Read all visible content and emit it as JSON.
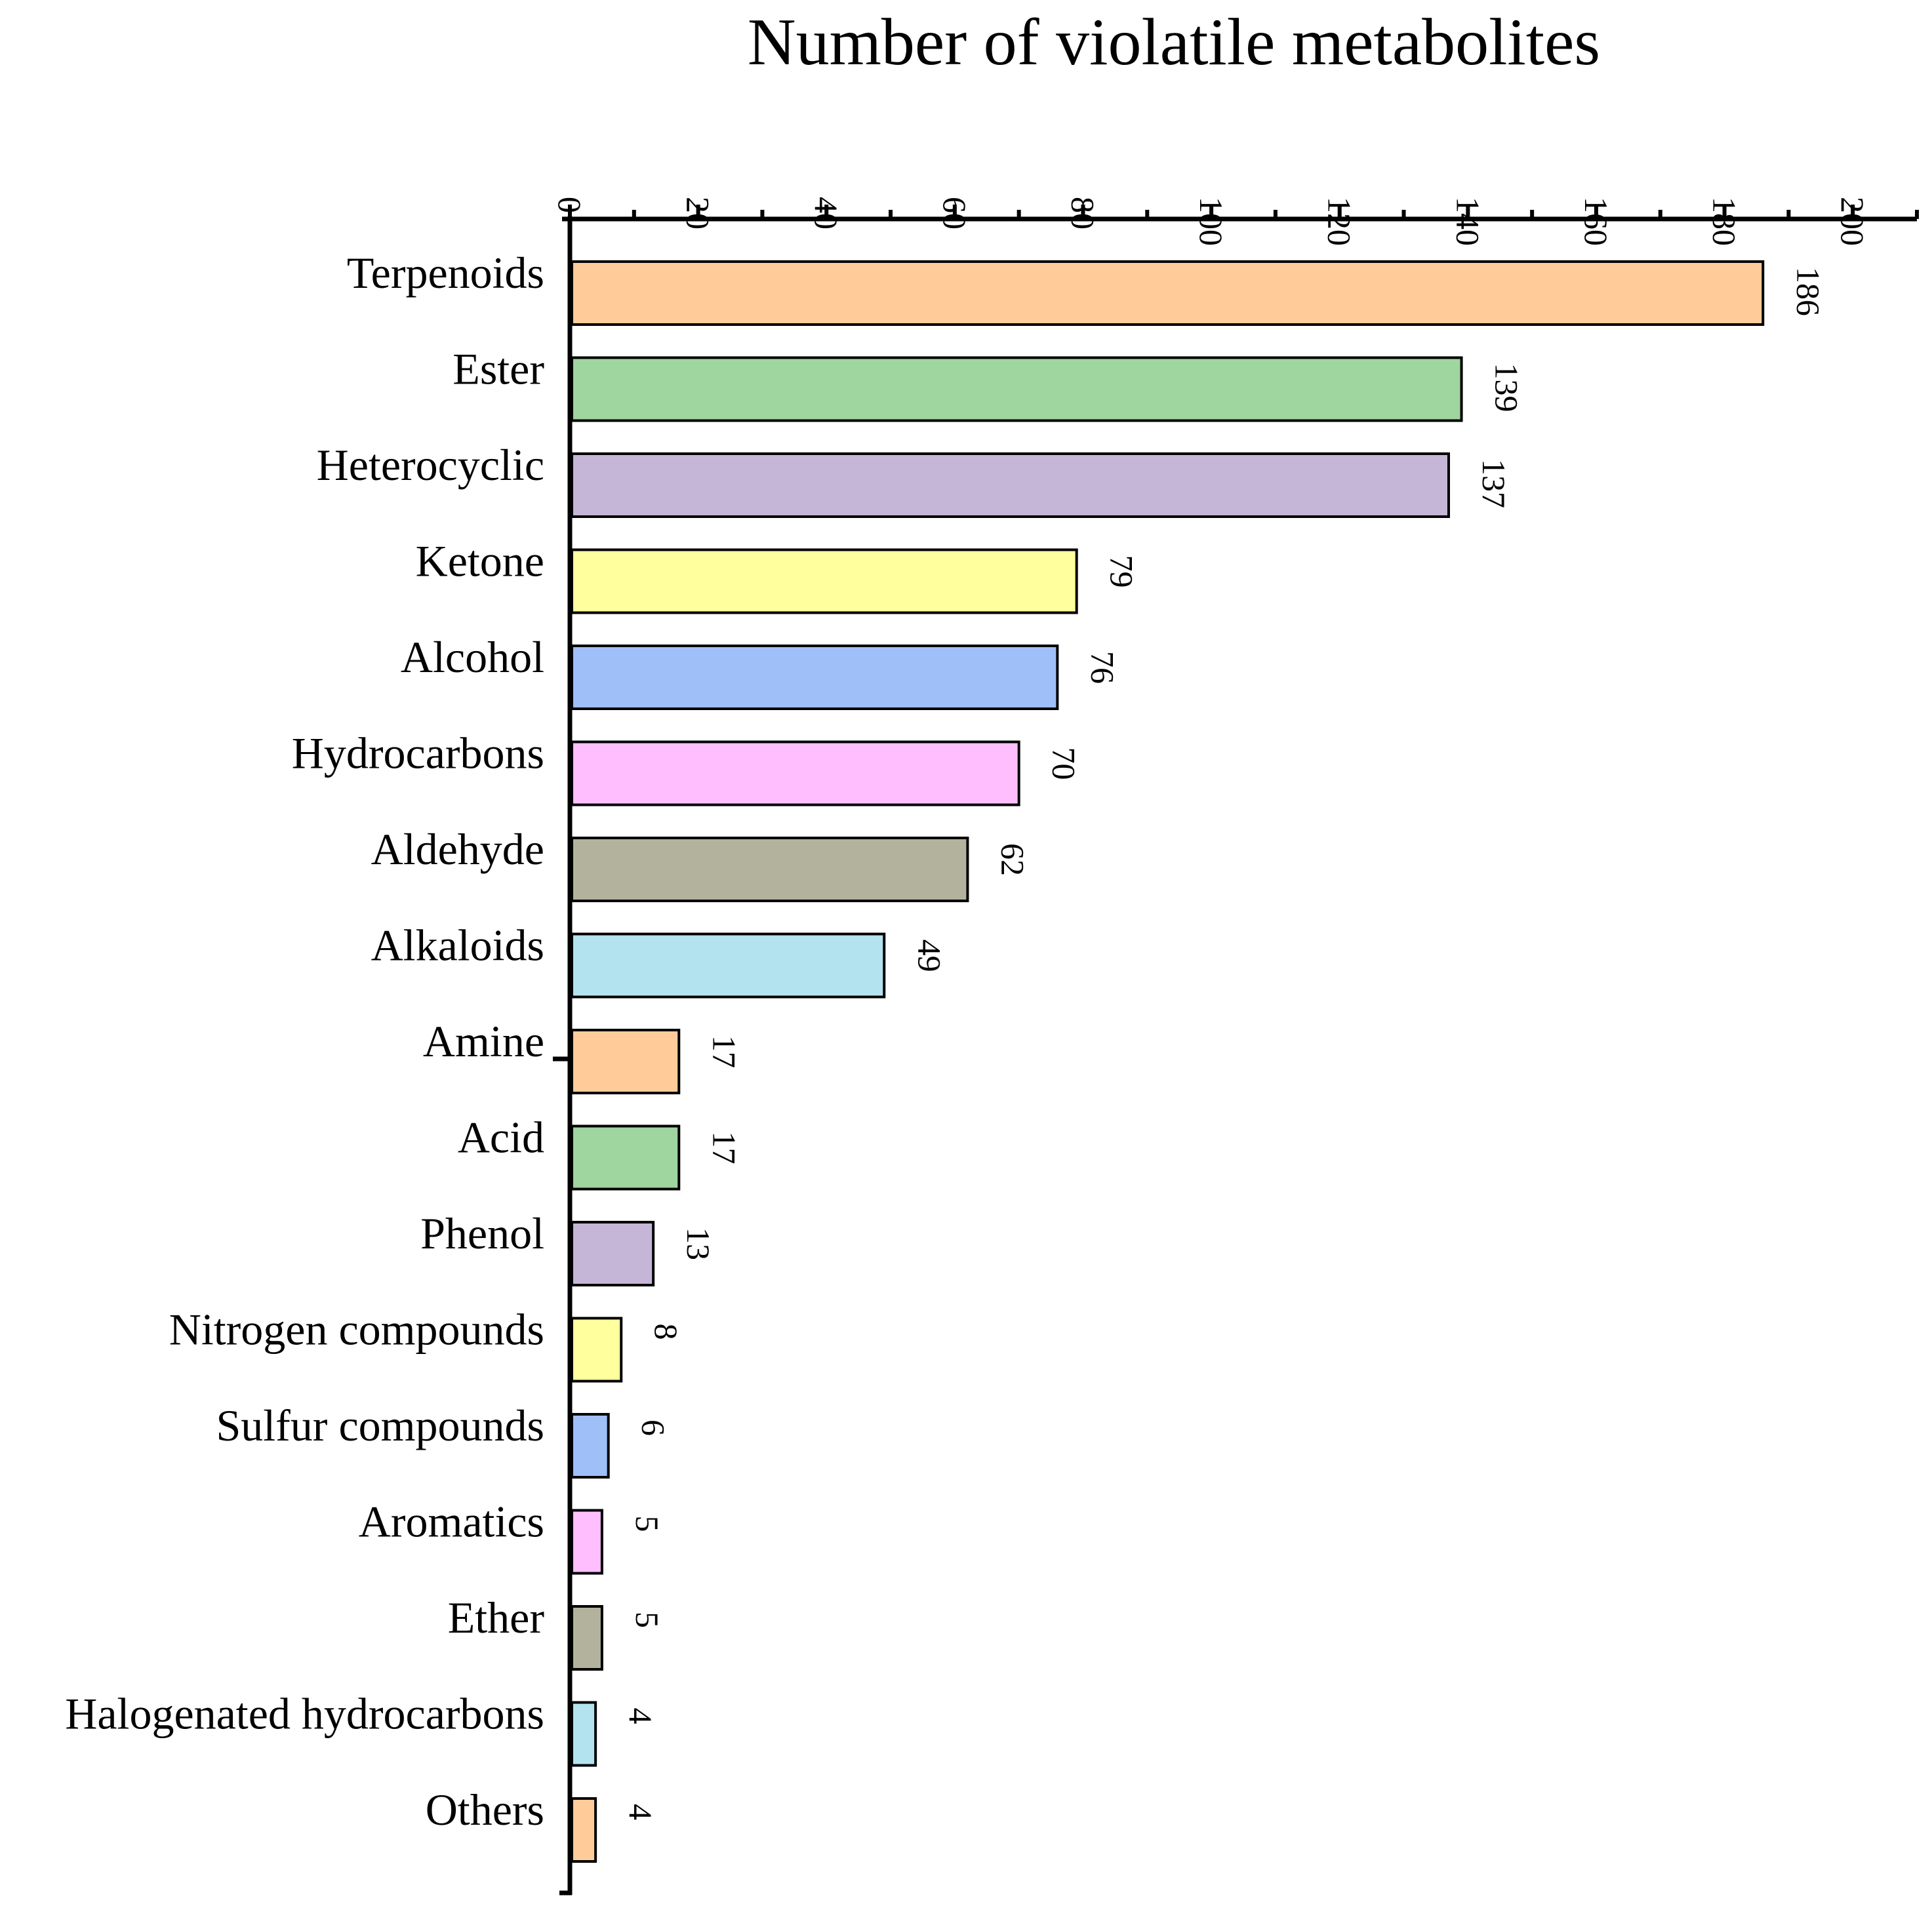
{
  "chart_data": {
    "type": "bar",
    "orientation": "horizontal",
    "title": "Number of violatile metabolites",
    "xlabel": "",
    "ylabel": "",
    "xlim": [
      0,
      210
    ],
    "x_ticks": [
      "0",
      "20",
      "40",
      "60",
      "80",
      "100",
      "120",
      "140",
      "160",
      "180",
      "200"
    ],
    "x_axis_position": "top",
    "grid": false,
    "legend": "none",
    "categories": [
      "Terpenoids",
      "Ester",
      "Heterocyclic",
      "Ketone",
      "Alcohol",
      "Hydrocarbons",
      "Aldehyde",
      "Alkaloids",
      "Amine",
      "Acid",
      "Phenol",
      "Nitrogen compounds",
      "Sulfur compounds",
      "Aromatics",
      "Ether",
      "Halogenated hydrocarbons",
      "Others"
    ],
    "values": [
      186,
      139,
      137,
      79,
      76,
      70,
      62,
      49,
      17,
      17,
      13,
      8,
      6,
      5,
      5,
      4,
      4
    ],
    "value_labels": [
      "186",
      "139",
      "137",
      "79",
      "76",
      "70",
      "62",
      "49",
      "17",
      "17",
      "13",
      "8",
      "6",
      "5",
      "5",
      "4",
      "4"
    ],
    "colors": [
      "#FFCC99",
      "#9FD59F",
      "#C5B5D7",
      "#FFFF9E",
      "#9EBFF8",
      "#FFBFFF",
      "#B3B29C",
      "#B4E3F0",
      "#FFCC99",
      "#9FD59F",
      "#C5B5D7",
      "#FFFF9E",
      "#9EBFF8",
      "#FFBFFF",
      "#B3B29C",
      "#B4E3F0",
      "#FFCC99"
    ]
  }
}
